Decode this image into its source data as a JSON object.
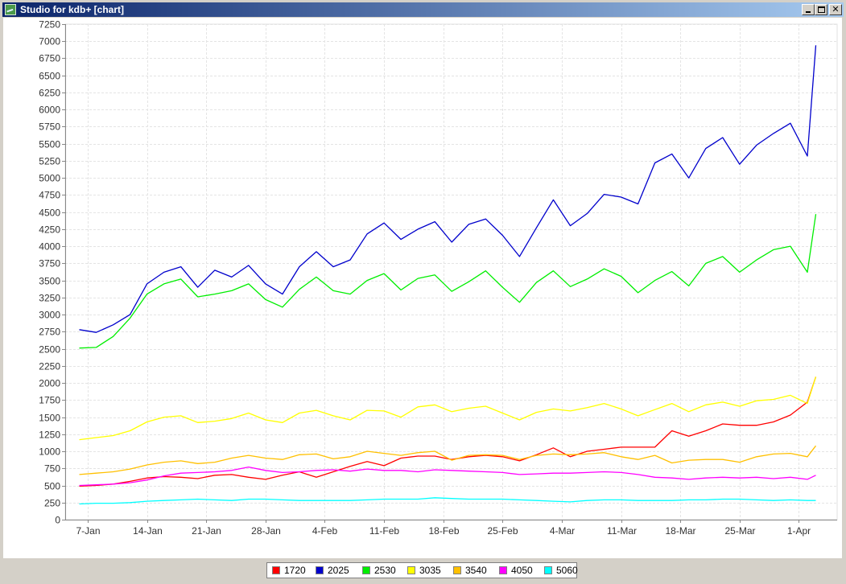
{
  "window": {
    "title": "Studio for kdb+ [chart]",
    "controls": {
      "minimize_icon": "minimize-icon",
      "maximize_icon": "maximize-icon",
      "close_symbol": "✕"
    }
  },
  "chart_data": {
    "type": "line",
    "title": "",
    "xlabel": "",
    "ylabel": "",
    "ylim": [
      0,
      7250
    ],
    "grid": true,
    "legend_position": "bottom",
    "x_tick_labels": [
      "7-Jan",
      "14-Jan",
      "21-Jan",
      "28-Jan",
      "4-Feb",
      "11-Feb",
      "18-Feb",
      "25-Feb",
      "4-Mar",
      "11-Mar",
      "18-Mar",
      "25-Mar",
      "1-Apr"
    ],
    "y_tick_labels": [
      "0",
      "250",
      "500",
      "750",
      "1000",
      "1250",
      "1500",
      "1750",
      "2000",
      "2250",
      "2500",
      "2750",
      "3000",
      "3250",
      "3500",
      "3750",
      "4000",
      "4250",
      "4500",
      "4750",
      "5000",
      "5250",
      "5500",
      "5750",
      "6000",
      "6250",
      "6500",
      "6750",
      "7000",
      "7250"
    ],
    "x": [
      "2013-01-06",
      "2013-01-08",
      "2013-01-10",
      "2013-01-12",
      "2013-01-14",
      "2013-01-16",
      "2013-01-18",
      "2013-01-20",
      "2013-01-22",
      "2013-01-24",
      "2013-01-26",
      "2013-01-28",
      "2013-01-30",
      "2013-02-01",
      "2013-02-03",
      "2013-02-05",
      "2013-02-07",
      "2013-02-09",
      "2013-02-11",
      "2013-02-13",
      "2013-02-15",
      "2013-02-17",
      "2013-02-19",
      "2013-02-21",
      "2013-02-23",
      "2013-02-25",
      "2013-02-27",
      "2013-03-01",
      "2013-03-03",
      "2013-03-05",
      "2013-03-07",
      "2013-03-09",
      "2013-03-11",
      "2013-03-13",
      "2013-03-15",
      "2013-03-17",
      "2013-03-19",
      "2013-03-21",
      "2013-03-23",
      "2013-03-25",
      "2013-03-27",
      "2013-03-29",
      "2013-03-31",
      "2013-04-02",
      "2013-04-03"
    ],
    "series": [
      {
        "name": "1720",
        "color": "#ff0000",
        "values": [
          490,
          500,
          520,
          560,
          610,
          630,
          620,
          600,
          650,
          660,
          620,
          590,
          650,
          700,
          620,
          700,
          780,
          850,
          790,
          900,
          930,
          930,
          880,
          920,
          940,
          920,
          860,
          950,
          1050,
          920,
          1000,
          1030,
          1060,
          1060,
          1060,
          1300,
          1220,
          1300,
          1400,
          1380,
          1380,
          1430,
          1530,
          1720,
          2090
        ]
      },
      {
        "name": "2025",
        "color": "#0000cc",
        "values": [
          2780,
          2740,
          2850,
          3000,
          3450,
          3620,
          3700,
          3400,
          3650,
          3550,
          3720,
          3450,
          3300,
          3700,
          3920,
          3700,
          3800,
          4180,
          4340,
          4100,
          4250,
          4360,
          4060,
          4320,
          4400,
          4160,
          3850,
          4270,
          4680,
          4300,
          4480,
          4760,
          4720,
          4620,
          5220,
          5350,
          5000,
          5430,
          5590,
          5200,
          5480,
          5650,
          5800,
          5320,
          6940
        ]
      },
      {
        "name": "2530",
        "color": "#00ee00",
        "values": [
          2510,
          2520,
          2680,
          2950,
          3300,
          3450,
          3520,
          3260,
          3300,
          3350,
          3450,
          3220,
          3110,
          3370,
          3550,
          3350,
          3300,
          3500,
          3600,
          3360,
          3530,
          3580,
          3340,
          3480,
          3640,
          3400,
          3180,
          3470,
          3640,
          3410,
          3520,
          3670,
          3560,
          3320,
          3500,
          3630,
          3420,
          3750,
          3850,
          3620,
          3800,
          3950,
          4000,
          3620,
          4470
        ]
      },
      {
        "name": "3035",
        "color": "#ffff00",
        "values": [
          1170,
          1200,
          1230,
          1300,
          1430,
          1500,
          1520,
          1420,
          1440,
          1480,
          1560,
          1460,
          1420,
          1560,
          1600,
          1520,
          1460,
          1600,
          1590,
          1500,
          1650,
          1680,
          1580,
          1630,
          1660,
          1560,
          1460,
          1570,
          1620,
          1590,
          1640,
          1700,
          1620,
          1520,
          1610,
          1700,
          1580,
          1680,
          1720,
          1660,
          1740,
          1760,
          1820,
          1700,
          2090
        ]
      },
      {
        "name": "3540",
        "color": "#ffc000",
        "values": [
          660,
          680,
          700,
          740,
          800,
          840,
          860,
          820,
          840,
          900,
          940,
          900,
          880,
          950,
          960,
          890,
          920,
          1000,
          970,
          940,
          980,
          1000,
          870,
          940,
          950,
          940,
          880,
          940,
          960,
          950,
          960,
          980,
          920,
          880,
          940,
          830,
          870,
          880,
          880,
          840,
          920,
          960,
          970,
          920,
          1080
        ]
      },
      {
        "name": "4050",
        "color": "#ff00ff",
        "values": [
          500,
          510,
          520,
          540,
          580,
          640,
          680,
          690,
          700,
          720,
          770,
          720,
          690,
          700,
          720,
          730,
          710,
          740,
          720,
          720,
          700,
          730,
          720,
          710,
          700,
          690,
          660,
          670,
          680,
          680,
          690,
          700,
          690,
          660,
          620,
          610,
          590,
          610,
          620,
          610,
          620,
          600,
          620,
          590,
          650
        ]
      },
      {
        "name": "5060",
        "color": "#00ffff",
        "values": [
          230,
          240,
          240,
          250,
          270,
          280,
          290,
          300,
          290,
          280,
          300,
          300,
          290,
          280,
          280,
          280,
          280,
          290,
          300,
          300,
          300,
          320,
          310,
          300,
          300,
          300,
          290,
          280,
          270,
          260,
          280,
          290,
          290,
          280,
          280,
          280,
          290,
          290,
          300,
          300,
          290,
          280,
          290,
          280,
          280
        ]
      }
    ]
  }
}
